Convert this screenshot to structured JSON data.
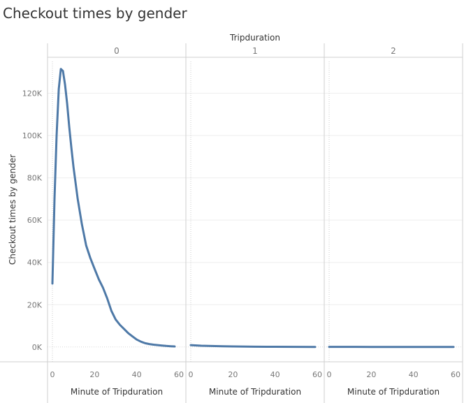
{
  "title": "Checkout times by gender",
  "colors": {
    "line": "#4e79a7",
    "gridline": "#eeeeee",
    "border": "#cfcfcf",
    "tick_text": "#777777",
    "label_text": "#333333"
  },
  "chart_data": {
    "type": "line",
    "title": "Checkout times by gender",
    "column_header": "Tripduration",
    "ylabel": "Checkout times by gender",
    "xlabel": "Minute of Tripduration",
    "ylim": [
      -7000,
      137000
    ],
    "xlim": [
      -1,
      62
    ],
    "y_ticks": [
      0,
      20000,
      40000,
      60000,
      80000,
      100000,
      120000
    ],
    "y_tick_labels": [
      "0K",
      "20K",
      "40K",
      "60K",
      "80K",
      "100K",
      "120K"
    ],
    "x_ticks": [
      0,
      20,
      40,
      60
    ],
    "x_tick_labels": [
      "0",
      "20",
      "40",
      "60"
    ],
    "grid": true,
    "panels": [
      {
        "label": "0",
        "points": [
          [
            0,
            30000
          ],
          [
            1,
            70000
          ],
          [
            2,
            100000
          ],
          [
            3,
            122000
          ],
          [
            4,
            131500
          ],
          [
            5,
            130500
          ],
          [
            6,
            124000
          ],
          [
            7,
            115000
          ],
          [
            8,
            104000
          ],
          [
            9,
            94000
          ],
          [
            10,
            85000
          ],
          [
            12,
            70000
          ],
          [
            14,
            58000
          ],
          [
            16,
            48000
          ],
          [
            18,
            42000
          ],
          [
            20,
            37000
          ],
          [
            22,
            32000
          ],
          [
            24,
            28000
          ],
          [
            26,
            23000
          ],
          [
            28,
            17000
          ],
          [
            30,
            13000
          ],
          [
            32,
            10500
          ],
          [
            34,
            8500
          ],
          [
            36,
            6500
          ],
          [
            38,
            5000
          ],
          [
            40,
            3500
          ],
          [
            42,
            2500
          ],
          [
            44,
            1800
          ],
          [
            46,
            1400
          ],
          [
            48,
            1100
          ],
          [
            50,
            900
          ],
          [
            52,
            700
          ],
          [
            54,
            500
          ],
          [
            56,
            350
          ],
          [
            58,
            250
          ]
        ]
      },
      {
        "label": "1",
        "points": [
          [
            0,
            900
          ],
          [
            2,
            750
          ],
          [
            5,
            600
          ],
          [
            10,
            450
          ],
          [
            15,
            350
          ],
          [
            20,
            250
          ],
          [
            30,
            150
          ],
          [
            40,
            100
          ],
          [
            50,
            60
          ],
          [
            59,
            30
          ]
        ]
      },
      {
        "label": "2",
        "points": [
          [
            0,
            80
          ],
          [
            10,
            60
          ],
          [
            20,
            40
          ],
          [
            30,
            30
          ],
          [
            40,
            20
          ],
          [
            50,
            15
          ],
          [
            59,
            10
          ]
        ]
      }
    ]
  }
}
